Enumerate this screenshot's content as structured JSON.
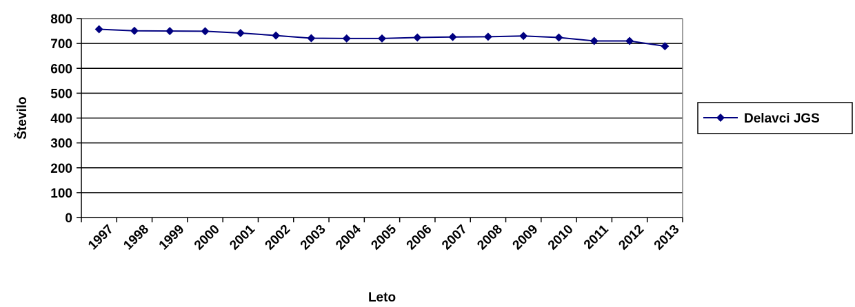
{
  "chart_data": {
    "type": "line",
    "title": "",
    "xlabel": "Leto",
    "ylabel": "Število",
    "ylim": [
      0,
      800
    ],
    "yticks": [
      0,
      100,
      200,
      300,
      400,
      500,
      600,
      700,
      800
    ],
    "grid": "horizontal",
    "legend_position": "right",
    "categories": [
      "1997",
      "1998",
      "1999",
      "2000",
      "2001",
      "2002",
      "2003",
      "2004",
      "2005",
      "2006",
      "2007",
      "2008",
      "2009",
      "2010",
      "2011",
      "2012",
      "2013"
    ],
    "series": [
      {
        "name": "Delavci JGS",
        "color": "#000080",
        "marker": "diamond",
        "values": [
          757,
          751,
          750,
          749,
          742,
          732,
          721,
          720,
          720,
          724,
          726,
          727,
          730,
          724,
          710,
          710,
          689
        ]
      }
    ]
  }
}
